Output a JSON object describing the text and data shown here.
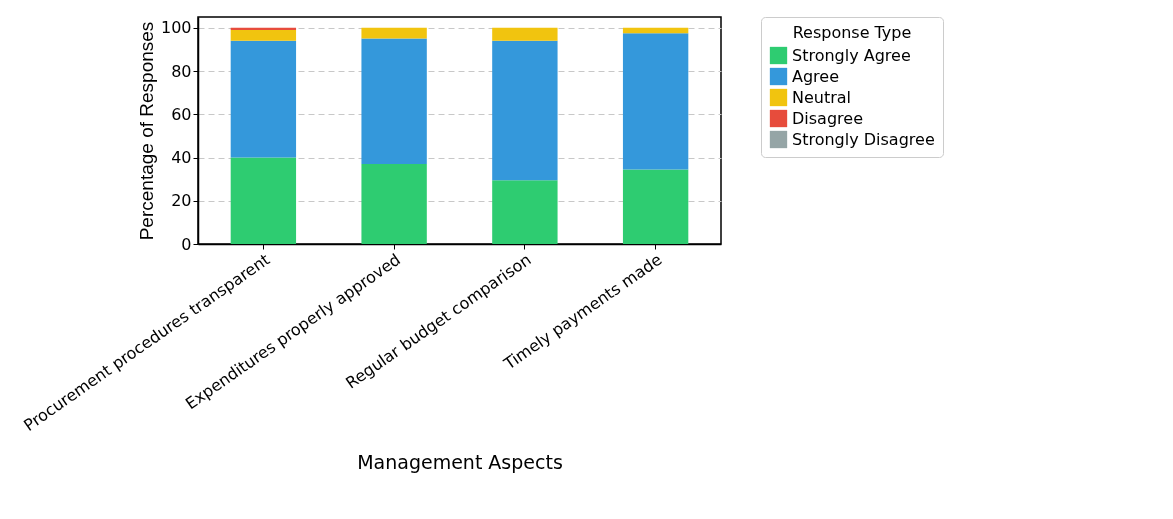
{
  "chart_data": {
    "type": "bar",
    "stacked": true,
    "xlabel": "Management Aspects",
    "ylabel": "Percentage of Responses",
    "legend_title": "Response Type",
    "legend": "top right",
    "grid": "y",
    "categories": [
      "Procurement procedures transparent",
      "Expenditures properly approved",
      "Regular budget comparison",
      "Timely payments made"
    ],
    "series": [
      {
        "name": "Strongly Agree",
        "color": "#2ecc71",
        "values": [
          40,
          37,
          29.5,
          34.5
        ]
      },
      {
        "name": "Agree",
        "color": "#3498db",
        "values": [
          54,
          58,
          64.5,
          63
        ]
      },
      {
        "name": "Neutral",
        "color": "#f1c40f",
        "values": [
          5,
          5,
          6,
          2.5
        ]
      },
      {
        "name": "Disagree",
        "color": "#e74c3c",
        "values": [
          1,
          0,
          0,
          0
        ]
      },
      {
        "name": "Strongly Disagree",
        "color": "#95a5a6",
        "values": [
          0,
          0,
          0,
          0
        ]
      }
    ],
    "ylim": [
      0,
      105
    ],
    "yticks": [
      0,
      20,
      40,
      60,
      80,
      100
    ]
  }
}
